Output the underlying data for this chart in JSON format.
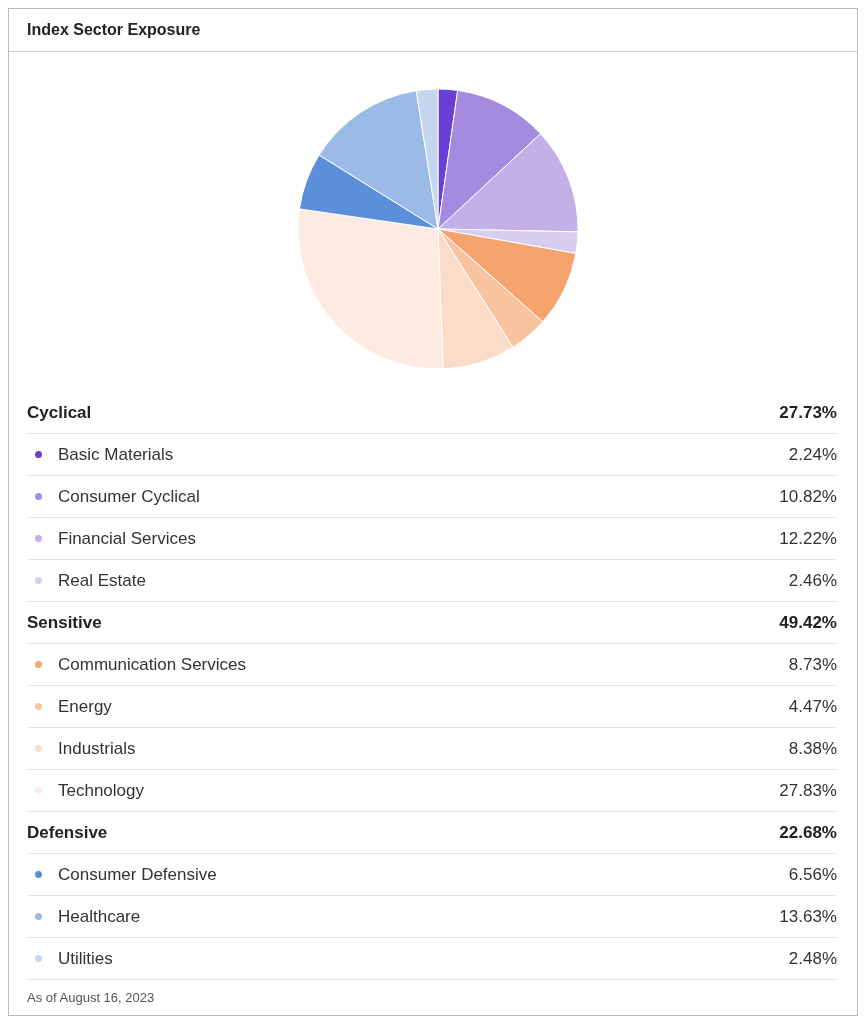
{
  "chart_data": {
    "type": "pie",
    "title": "Index Sector Exposure",
    "categories": [
      "Basic Materials",
      "Consumer Cyclical",
      "Financial Services",
      "Real Estate",
      "Communication Services",
      "Energy",
      "Industrials",
      "Technology",
      "Consumer Defensive",
      "Healthcare",
      "Utilities"
    ],
    "values": [
      2.24,
      10.82,
      12.22,
      2.46,
      8.73,
      4.47,
      8.38,
      27.83,
      6.56,
      13.63,
      2.48
    ],
    "colors": [
      "#6a3fd4",
      "#a48be0",
      "#c3b0e8",
      "#d6cdf0",
      "#f5a46e",
      "#f8c39e",
      "#fbdcc8",
      "#fdebe2",
      "#5b8fd9",
      "#9bbbe6",
      "#c5d7f0"
    ],
    "value_labels": [
      "2.24%",
      "10.82%",
      "12.22%",
      "2.46%",
      "8.73%",
      "4.47%",
      "8.38%",
      "27.83%",
      "6.56%",
      "13.63%",
      "2.48%"
    ],
    "legend": "bottom",
    "annotations": [
      "Cyclical",
      "27.73%",
      "Sensitive",
      "49.42%",
      "Defensive",
      "22.68%",
      "As of August 16, 2023"
    ]
  }
}
